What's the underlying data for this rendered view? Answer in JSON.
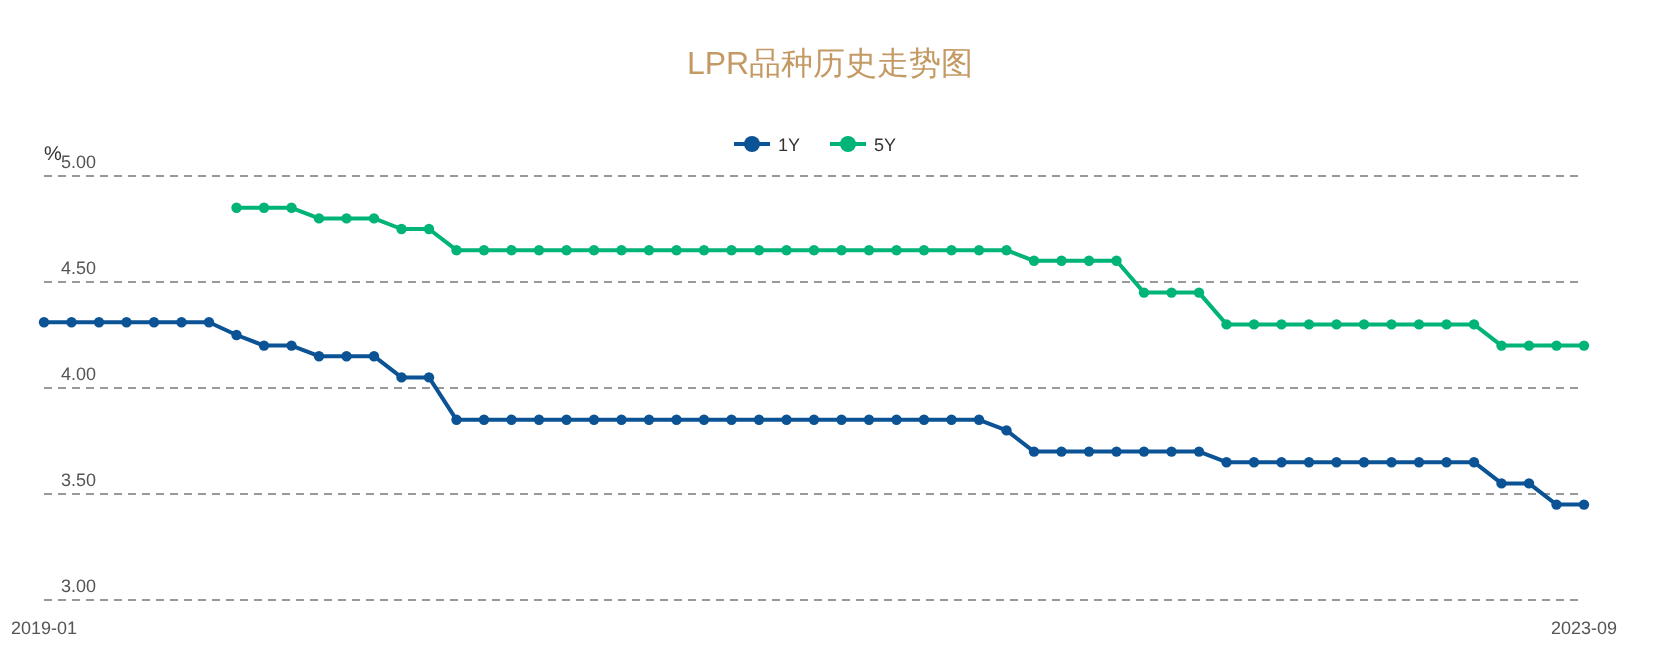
{
  "chart_data": {
    "type": "line",
    "title": "LPR品种历史走势图",
    "ylabel": "%",
    "categories": [
      "2019-01",
      null,
      null,
      null,
      null,
      null,
      null,
      null,
      null,
      null,
      null,
      null,
      null,
      null,
      null,
      null,
      null,
      null,
      null,
      null,
      null,
      null,
      null,
      null,
      null,
      null,
      null,
      null,
      null,
      null,
      null,
      null,
      null,
      null,
      null,
      null,
      null,
      null,
      null,
      null,
      null,
      null,
      null,
      null,
      null,
      null,
      null,
      null,
      null,
      null,
      null,
      null,
      null,
      null,
      null,
      null,
      "2023-09"
    ],
    "series": [
      {
        "name": "1Y",
        "color": "#0b5394",
        "values": [
          4.31,
          4.31,
          4.31,
          4.31,
          4.31,
          4.31,
          4.31,
          4.25,
          4.2,
          4.2,
          4.15,
          4.15,
          4.15,
          4.05,
          4.05,
          3.85,
          3.85,
          3.85,
          3.85,
          3.85,
          3.85,
          3.85,
          3.85,
          3.85,
          3.85,
          3.85,
          3.85,
          3.85,
          3.85,
          3.85,
          3.85,
          3.85,
          3.85,
          3.85,
          3.85,
          3.8,
          3.7,
          3.7,
          3.7,
          3.7,
          3.7,
          3.7,
          3.7,
          3.65,
          3.65,
          3.65,
          3.65,
          3.65,
          3.65,
          3.65,
          3.65,
          3.65,
          3.65,
          3.55,
          3.55,
          3.45,
          3.45
        ]
      },
      {
        "name": "5Y",
        "color": "#00b377",
        "values": [
          null,
          null,
          null,
          null,
          null,
          null,
          null,
          4.85,
          4.85,
          4.85,
          4.8,
          4.8,
          4.8,
          4.75,
          4.75,
          4.65,
          4.65,
          4.65,
          4.65,
          4.65,
          4.65,
          4.65,
          4.65,
          4.65,
          4.65,
          4.65,
          4.65,
          4.65,
          4.65,
          4.65,
          4.65,
          4.65,
          4.65,
          4.65,
          4.65,
          4.65,
          4.6,
          4.6,
          4.6,
          4.6,
          4.45,
          4.45,
          4.45,
          4.3,
          4.3,
          4.3,
          4.3,
          4.3,
          4.3,
          4.3,
          4.3,
          4.3,
          4.3,
          4.2,
          4.2,
          4.2,
          4.2
        ]
      }
    ],
    "ylim": [
      3,
      5
    ],
    "yticks": [
      {
        "value": 3,
        "label": "3.00"
      },
      {
        "value": 3.5,
        "label": "3.50"
      },
      {
        "value": 4,
        "label": "4.00"
      },
      {
        "value": 4.5,
        "label": "4.50"
      },
      {
        "value": 5,
        "label": "5.00"
      }
    ],
    "grid": "y",
    "legend": "top",
    "marker": "circle",
    "line_style": "solid"
  }
}
